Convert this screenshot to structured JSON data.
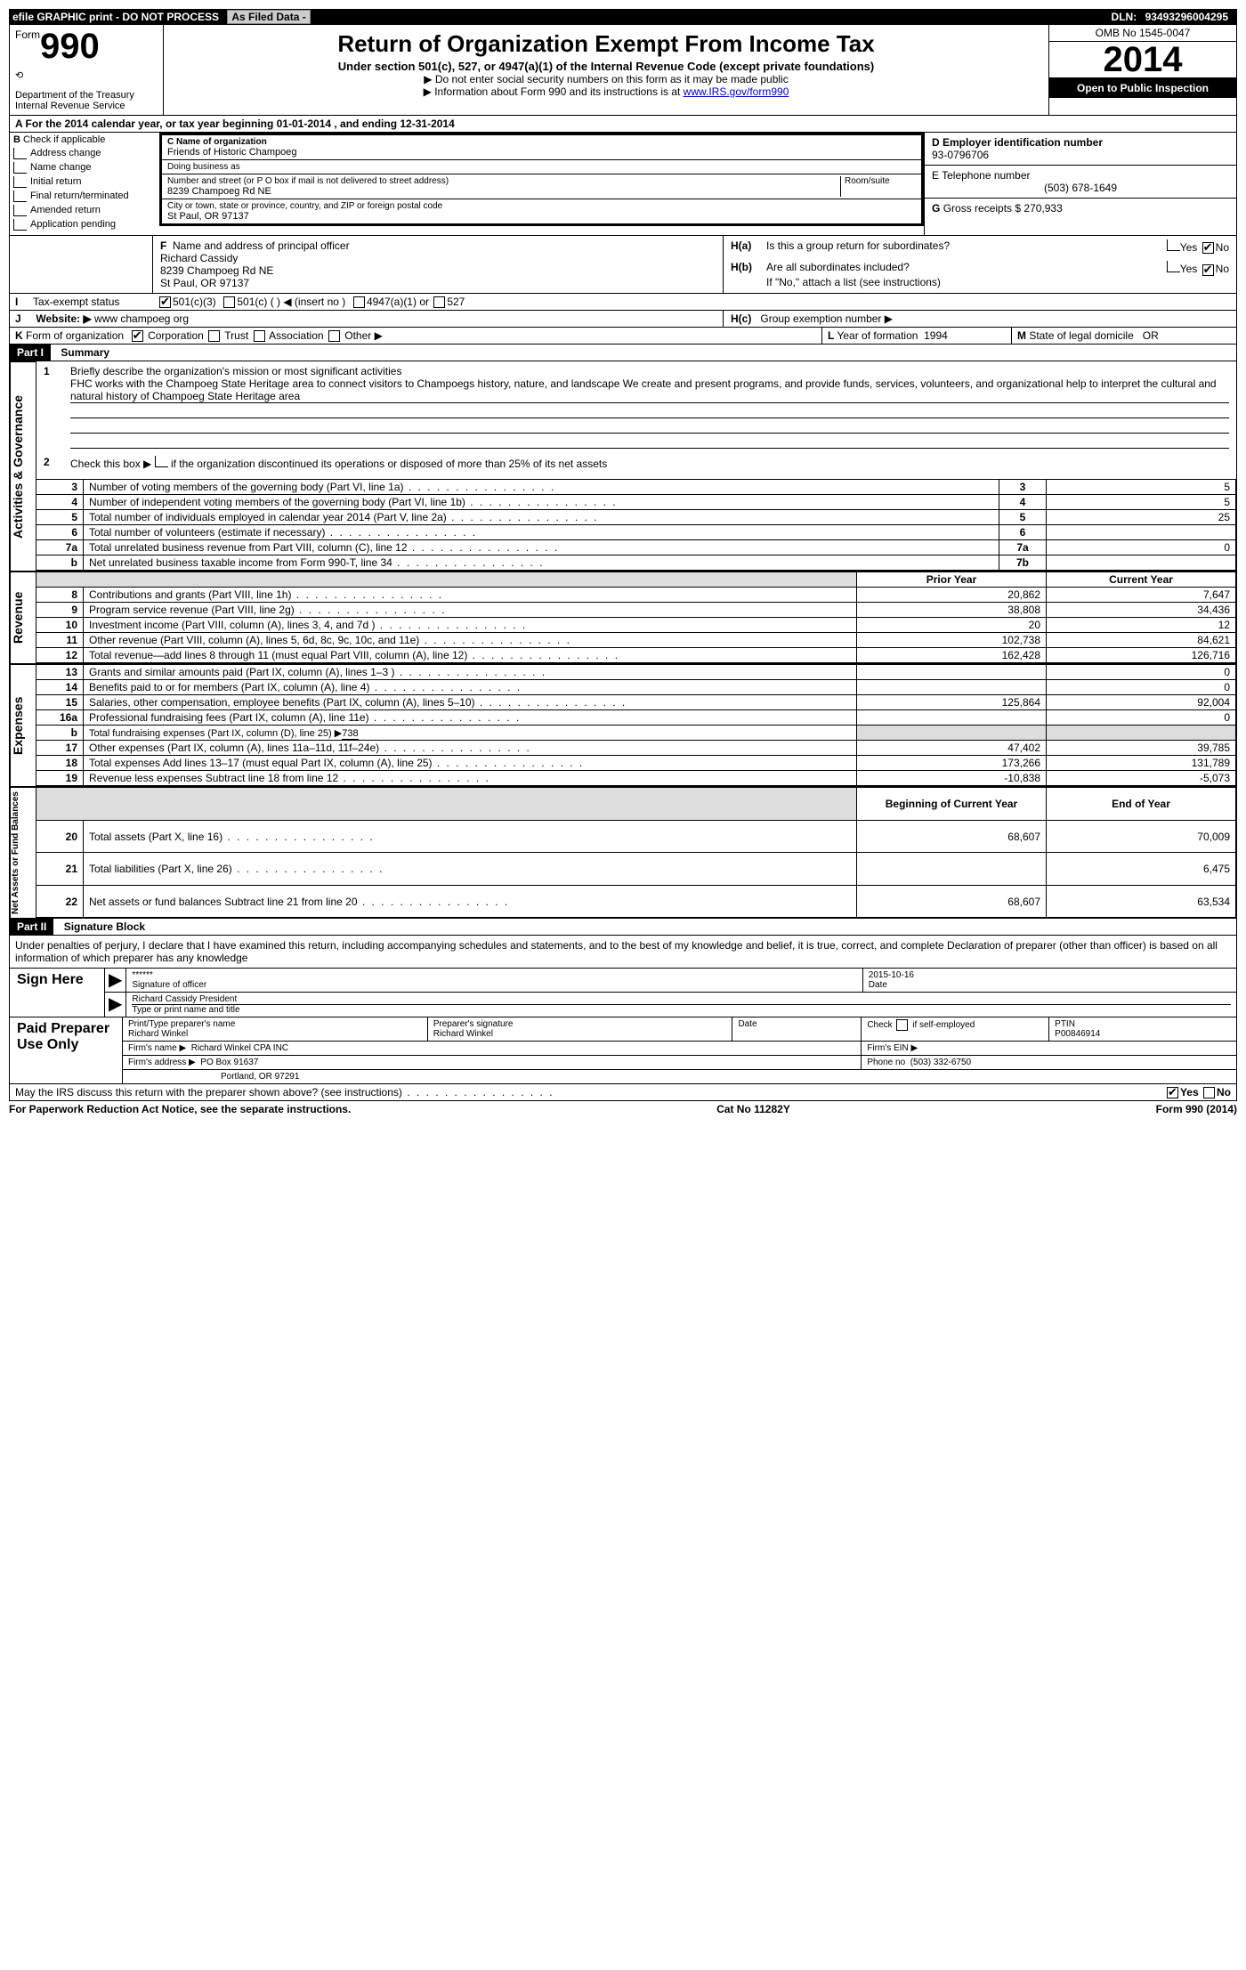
{
  "topbar": {
    "efile": "efile GRAPHIC print - DO NOT PROCESS",
    "asfiled": "As Filed Data -",
    "dln_label": "DLN:",
    "dln": "93493296004295"
  },
  "header": {
    "form_label": "Form",
    "form_number": "990",
    "dept1": "Department of the Treasury",
    "dept2": "Internal Revenue Service",
    "title": "Return of Organization Exempt From Income Tax",
    "subtitle": "Under section 501(c), 527, or 4947(a)(1) of the Internal Revenue Code (except private foundations)",
    "arrow1": "▶ Do not enter social security numbers on this form as it may be made public",
    "arrow2_pre": "▶ Information about Form 990 and its instructions is at ",
    "arrow2_link": "www.IRS.gov/form990",
    "omb": "OMB No 1545-0047",
    "year": "2014",
    "inspection": "Open to Public Inspection"
  },
  "line_a": "A  For the 2014 calendar year, or tax year beginning 01-01-2014    , and ending 12-31-2014",
  "section_b": {
    "label": "B",
    "check": "Check if applicable",
    "items": [
      "Address change",
      "Name change",
      "Initial return",
      "Final return/terminated",
      "Amended return",
      "Application pending"
    ]
  },
  "section_c": {
    "name_label": "C Name of organization",
    "name": "Friends of Historic Champoeg",
    "dba_label": "Doing business as",
    "dba": "",
    "addr_label": "Number and street (or P O  box if mail is not delivered to street address)",
    "room_label": "Room/suite",
    "addr": "8239 Champoeg Rd NE",
    "city_label": "City or town, state or province, country, and ZIP or foreign postal code",
    "city": "St Paul, OR  97137"
  },
  "section_d": {
    "label": "D Employer identification number",
    "value": "93-0796706"
  },
  "section_e": {
    "label": "E Telephone number",
    "value": "(503) 678-1649"
  },
  "section_g": {
    "label": "G",
    "text": "Gross receipts $",
    "value": "270,933"
  },
  "section_f": {
    "label": "F",
    "text": "Name and address of principal officer",
    "name": "Richard Cassidy",
    "addr1": "8239 Champoeg Rd NE",
    "addr2": "St Paul, OR  97137"
  },
  "section_h": {
    "ha_label": "H(a)",
    "ha_text": "Is this a group return for subordinates?",
    "hb_label": "H(b)",
    "hb_text": "Are all subordinates included?",
    "hb_note": "If \"No,\" attach a list  (see instructions)",
    "hc_label": "H(c)",
    "hc_text": "Group exemption number ▶",
    "yes": "Yes",
    "no": "No"
  },
  "line_i": {
    "label": "I",
    "text": "Tax-exempt status",
    "opt1": "501(c)(3)",
    "opt2": "501(c) (   ) ◀ (insert no )",
    "opt3": "4947(a)(1) or",
    "opt4": "527"
  },
  "line_j": {
    "label": "J",
    "text": "Website: ▶",
    "value": "www champoeg org"
  },
  "line_k": {
    "label": "K",
    "text": "Form of organization",
    "corp": "Corporation",
    "trust": "Trust",
    "assoc": "Association",
    "other": "Other ▶"
  },
  "line_l": {
    "label": "L",
    "text": "Year of formation",
    "value": "1994"
  },
  "line_m": {
    "label": "M",
    "text": "State of legal domicile",
    "value": "OR"
  },
  "part1": {
    "title": "Part I",
    "subtitle": "Summary",
    "q1_label": "1",
    "q1": "Briefly describe the organization's mission or most significant activities",
    "q1_text": "FHC works with the Champoeg State Heritage area to connect visitors to Champoegs history, nature, and landscape  We create and present programs, and provide funds, services, volunteers, and organizational help to interpret the cultural and natural history of Champoeg State Heritage area",
    "q2_label": "2",
    "q2": "Check this box ▶",
    "q2_text": "if the organization discontinued its operations or disposed of more than 25% of its net assets",
    "vert_ag": "Activities & Governance",
    "vert_rev": "Revenue",
    "vert_exp": "Expenses",
    "vert_net": "Net Assets or Fund Balances"
  },
  "ag_rows": [
    {
      "n": "3",
      "t": "Number of voting members of the governing body (Part VI, line 1a)",
      "box": "3",
      "v": "5"
    },
    {
      "n": "4",
      "t": "Number of independent voting members of the governing body (Part VI, line 1b)",
      "box": "4",
      "v": "5"
    },
    {
      "n": "5",
      "t": "Total number of individuals employed in calendar year 2014 (Part V, line 2a)",
      "box": "5",
      "v": "25"
    },
    {
      "n": "6",
      "t": "Total number of volunteers (estimate if necessary)",
      "box": "6",
      "v": ""
    },
    {
      "n": "7a",
      "t": "Total unrelated business revenue from Part VIII, column (C), line 12",
      "box": "7a",
      "v": "0"
    },
    {
      "n": "b",
      "t": "Net unrelated business taxable income from Form 990-T, line 34",
      "box": "7b",
      "v": ""
    }
  ],
  "headers2": {
    "prior": "Prior Year",
    "current": "Current Year",
    "boy": "Beginning of Current Year",
    "eoy": "End of Year"
  },
  "rev_rows": [
    {
      "n": "8",
      "t": "Contributions and grants (Part VIII, line 1h)",
      "p": "20,862",
      "c": "7,647"
    },
    {
      "n": "9",
      "t": "Program service revenue (Part VIII, line 2g)",
      "p": "38,808",
      "c": "34,436"
    },
    {
      "n": "10",
      "t": "Investment income (Part VIII, column (A), lines 3, 4, and 7d )",
      "p": "20",
      "c": "12"
    },
    {
      "n": "11",
      "t": "Other revenue (Part VIII, column (A), lines 5, 6d, 8c, 9c, 10c, and 11e)",
      "p": "102,738",
      "c": "84,621"
    },
    {
      "n": "12",
      "t": "Total revenue—add lines 8 through 11 (must equal Part VIII, column (A), line 12)",
      "p": "162,428",
      "c": "126,716"
    }
  ],
  "exp_rows": [
    {
      "n": "13",
      "t": "Grants and similar amounts paid (Part IX, column (A), lines 1–3 )",
      "p": "",
      "c": "0"
    },
    {
      "n": "14",
      "t": "Benefits paid to or for members (Part IX, column (A), line 4)",
      "p": "",
      "c": "0"
    },
    {
      "n": "15",
      "t": "Salaries, other compensation, employee benefits (Part IX, column (A), lines 5–10)",
      "p": "125,864",
      "c": "92,004"
    },
    {
      "n": "16a",
      "t": "Professional fundraising fees (Part IX, column (A), line 11e)",
      "p": "",
      "c": "0"
    },
    {
      "n": "b",
      "t": "Total fundraising expenses (Part IX, column (D), line 25) ▶",
      "extra": "738",
      "p": null,
      "c": null
    },
    {
      "n": "17",
      "t": "Other expenses (Part IX, column (A), lines 11a–11d, 11f–24e)",
      "p": "47,402",
      "c": "39,785"
    },
    {
      "n": "18",
      "t": "Total expenses  Add lines 13–17 (must equal Part IX, column (A), line 25)",
      "p": "173,266",
      "c": "131,789"
    },
    {
      "n": "19",
      "t": "Revenue less expenses  Subtract line 18 from line 12",
      "p": "-10,838",
      "c": "-5,073"
    }
  ],
  "net_rows": [
    {
      "n": "20",
      "t": "Total assets (Part X, line 16)",
      "p": "68,607",
      "c": "70,009"
    },
    {
      "n": "21",
      "t": "Total liabilities (Part X, line 26)",
      "p": "",
      "c": "6,475"
    },
    {
      "n": "22",
      "t": "Net assets or fund balances  Subtract line 21 from line 20",
      "p": "68,607",
      "c": "63,534"
    }
  ],
  "part2": {
    "title": "Part II",
    "subtitle": "Signature Block",
    "perjury": "Under penalties of perjury, I declare that I have examined this return, including accompanying schedules and statements, and to the best of my knowledge and belief, it is true, correct, and complete  Declaration of preparer (other than officer) is based on all information of which preparer has any knowledge"
  },
  "sign": {
    "label": "Sign Here",
    "stars": "******",
    "sig_label": "Signature of officer",
    "date": "2015-10-16",
    "date_label": "Date",
    "name": "Richard Cassidy President",
    "name_label": "Type or print name and title"
  },
  "preparer": {
    "label": "Paid Preparer Use Only",
    "name_label": "Print/Type preparer's name",
    "name": "Richard Winkel",
    "sig_label": "Preparer's signature",
    "sig": "Richard Winkel",
    "date_label": "Date",
    "check_label": "Check",
    "check_text": "if self-employed",
    "ptin_label": "PTIN",
    "ptin": "P00846914",
    "firm_name_label": "Firm's name    ▶",
    "firm_name": "Richard Winkel CPA INC",
    "firm_ein_label": "Firm's EIN ▶",
    "firm_addr_label": "Firm's address ▶",
    "firm_addr1": "PO Box 91637",
    "firm_addr2": "Portland, OR  97291",
    "phone_label": "Phone no",
    "phone": "(503) 332-6750"
  },
  "discuss": {
    "text": "May the IRS discuss this return with the preparer shown above? (see instructions)",
    "yes": "Yes",
    "no": "No"
  },
  "footer": {
    "left": "For Paperwork Reduction Act Notice, see the separate instructions.",
    "mid": "Cat No 11282Y",
    "right": "Form 990 (2014)"
  }
}
